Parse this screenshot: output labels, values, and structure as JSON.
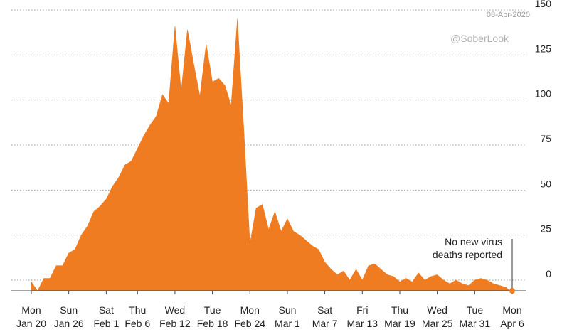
{
  "chart_data": {
    "type": "area",
    "title": "",
    "xlabel": "",
    "ylabel": "",
    "date_label": "08-Apr-2020",
    "watermark": "@SoberLook",
    "annotation": [
      "No new virus",
      "deaths reported"
    ],
    "y_ticks": [
      0,
      25,
      50,
      75,
      100,
      125,
      150
    ],
    "ylim": [
      -7,
      150
    ],
    "grid": true,
    "grid_style": "dotted horizontal",
    "y_axis_side": "right",
    "color": "#f07c22",
    "x_ticks": [
      {
        "date": "2020-01-20",
        "day": "Mon",
        "label": "Jan 20"
      },
      {
        "date": "2020-01-26",
        "day": "Sun",
        "label": "Jan 26"
      },
      {
        "date": "2020-02-01",
        "day": "Sat",
        "label": "Feb 1"
      },
      {
        "date": "2020-02-06",
        "day": "Thu",
        "label": "Feb 6"
      },
      {
        "date": "2020-02-12",
        "day": "Wed",
        "label": "Feb 12"
      },
      {
        "date": "2020-02-18",
        "day": "Tue",
        "label": "Feb 18"
      },
      {
        "date": "2020-02-24",
        "day": "Mon",
        "label": "Feb 24"
      },
      {
        "date": "2020-03-01",
        "day": "Sun",
        "label": "Mar 1"
      },
      {
        "date": "2020-03-07",
        "day": "Sat",
        "label": "Mar 7"
      },
      {
        "date": "2020-03-13",
        "day": "Fri",
        "label": "Mar 13"
      },
      {
        "date": "2020-03-19",
        "day": "Thu",
        "label": "Mar 19"
      },
      {
        "date": "2020-03-25",
        "day": "Wed",
        "label": "Mar 25"
      },
      {
        "date": "2020-03-31",
        "day": "Tue",
        "label": "Mar 31"
      },
      {
        "date": "2020-04-06",
        "day": "Mon",
        "label": "Apr 6"
      }
    ],
    "series": [
      {
        "x": [
          "2020-01-20",
          "2020-01-21",
          "2020-01-22",
          "2020-01-23",
          "2020-01-24",
          "2020-01-25",
          "2020-01-26",
          "2020-01-27",
          "2020-01-28",
          "2020-01-29",
          "2020-01-30",
          "2020-01-31",
          "2020-02-01",
          "2020-02-02",
          "2020-02-03",
          "2020-02-04",
          "2020-02-05",
          "2020-02-06",
          "2020-02-07",
          "2020-02-08",
          "2020-02-09",
          "2020-02-10",
          "2020-02-11",
          "2020-02-12",
          "2020-02-13",
          "2020-02-14",
          "2020-02-15",
          "2020-02-16",
          "2020-02-17",
          "2020-02-18",
          "2020-02-19",
          "2020-02-20",
          "2020-02-21",
          "2020-02-22",
          "2020-02-23",
          "2020-02-24",
          "2020-02-25",
          "2020-02-26",
          "2020-02-27",
          "2020-02-28",
          "2020-02-29",
          "2020-03-01",
          "2020-03-02",
          "2020-03-03",
          "2020-03-04",
          "2020-03-05",
          "2020-03-06",
          "2020-03-07",
          "2020-03-08",
          "2020-03-09",
          "2020-03-10",
          "2020-03-11",
          "2020-03-12",
          "2020-03-13",
          "2020-03-14",
          "2020-03-15",
          "2020-03-16",
          "2020-03-17",
          "2020-03-18",
          "2020-03-19",
          "2020-03-20",
          "2020-03-21",
          "2020-03-22",
          "2020-03-23",
          "2020-03-24",
          "2020-03-25",
          "2020-03-26",
          "2020-03-27",
          "2020-03-28",
          "2020-03-29",
          "2020-03-30",
          "2020-03-31",
          "2020-04-01",
          "2020-04-02",
          "2020-04-03",
          "2020-04-04",
          "2020-04-05",
          "2020-04-06"
        ],
        "values": [
          -1,
          -6,
          1,
          1,
          8,
          8,
          15,
          17,
          25,
          30,
          38,
          41,
          45,
          52,
          57,
          64,
          66,
          73,
          80,
          86,
          91,
          103,
          98,
          141,
          105,
          139,
          120,
          102,
          131,
          110,
          112,
          108,
          97,
          145,
          85,
          20,
          40,
          42,
          28,
          38,
          27,
          34,
          27,
          25,
          22,
          19,
          17,
          10,
          6,
          3,
          5,
          0,
          6,
          0,
          8,
          9,
          6,
          3,
          2,
          -1,
          1,
          -1,
          4,
          0,
          2,
          3,
          0,
          -2,
          0,
          -2,
          -3,
          0,
          1,
          0,
          -2,
          -3,
          -4,
          -7
        ]
      }
    ]
  }
}
